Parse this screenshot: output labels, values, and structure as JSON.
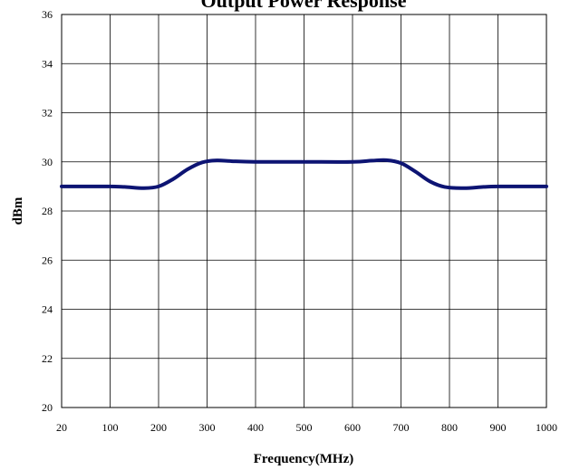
{
  "chart_data": {
    "type": "line",
    "title": "Output Power Response",
    "xlabel": "Frequency(MHz)",
    "ylabel": "dBm",
    "xticks": [
      20,
      100,
      200,
      300,
      400,
      500,
      600,
      700,
      800,
      900,
      1000
    ],
    "yticks": [
      20,
      22,
      24,
      26,
      28,
      30,
      32,
      34,
      36
    ],
    "xlim": [
      20,
      1000
    ],
    "ylim": [
      20,
      36
    ],
    "grid": true,
    "legend": "none",
    "series": [
      {
        "color": "#0d1473",
        "x": [
          20,
          100,
          130,
          170,
          200,
          230,
          260,
          290,
          320,
          350,
          400,
          500,
          600,
          640,
          670,
          700,
          730,
          760,
          790,
          830,
          870,
          900,
          1000
        ],
        "y": [
          29.0,
          29.0,
          28.98,
          28.93,
          29.0,
          29.3,
          29.7,
          29.98,
          30.06,
          30.03,
          30.0,
          30.0,
          30.0,
          30.05,
          30.07,
          29.95,
          29.6,
          29.2,
          28.98,
          28.93,
          28.98,
          29.0,
          29.0
        ]
      }
    ]
  }
}
